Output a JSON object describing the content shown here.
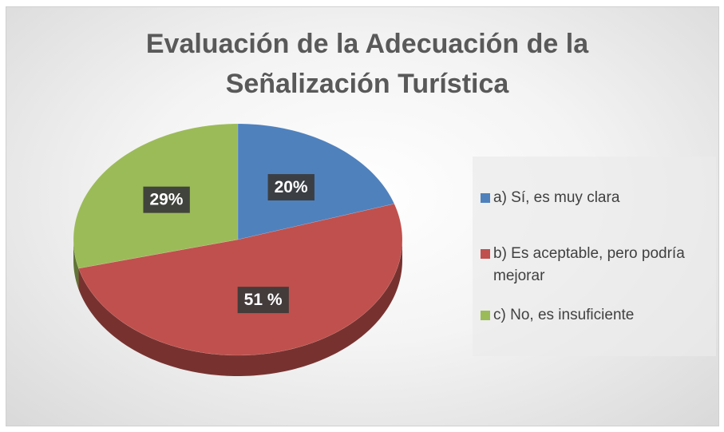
{
  "chart_data": {
    "type": "pie",
    "title": "Evaluación de la Adecuación de la Señalización Turística",
    "categories": [
      "a) Sí, es muy clara",
      "b) Es aceptable, pero podría mejorar",
      "c) No, es insuficiente"
    ],
    "values": [
      20,
      51,
      29
    ],
    "value_labels": [
      "20%",
      "51 %",
      "29%"
    ],
    "colors": [
      "#4f81bd",
      "#c0504d",
      "#9bbb59"
    ],
    "legend": "right"
  }
}
